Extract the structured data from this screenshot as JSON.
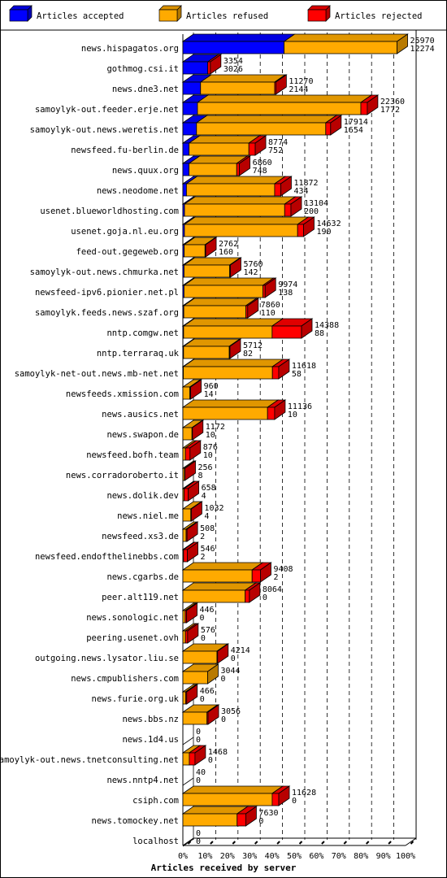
{
  "chart_data": {
    "type": "bar",
    "orientation": "horizontal",
    "stacked": true,
    "title": "Articles received by server",
    "legend_position": "top",
    "grid": true,
    "x_ticks": [
      "0%",
      "10%",
      "20%",
      "30%",
      "40%",
      "50%",
      "60%",
      "70%",
      "80%",
      "90%",
      "100%"
    ],
    "xlim": [
      0,
      27000
    ],
    "series": [
      {
        "name": "Articles accepted",
        "color": "#0000ff"
      },
      {
        "name": "Articles refused",
        "color": "#ffaa00"
      },
      {
        "name": "Articles rejected",
        "color": "#ff0000"
      }
    ],
    "categories": [
      "news.hispagatos.org",
      "gothmog.csi.it",
      "news.dne3.net",
      "samoylyk-out.feeder.erje.net",
      "samoylyk-out.news.weretis.net",
      "newsfeed.fu-berlin.de",
      "news.quux.org",
      "news.neodome.net",
      "usenet.blueworldhosting.com",
      "usenet.goja.nl.eu.org",
      "feed-out.gegeweb.org",
      "samoylyk-out.news.chmurka.net",
      "newsfeed-ipv6.pionier.net.pl",
      "samoylyk.feeds.news.szaf.org",
      "nntp.comgw.net",
      "nntp.terraraq.uk",
      "samoylyk-net-out.news.mb-net.net",
      "newsfeeds.xmission.com",
      "news.ausics.net",
      "news.swapon.de",
      "newsfeed.bofh.team",
      "news.corradoroberto.it",
      "news.dolik.dev",
      "news.niel.me",
      "newsfeed.xs3.de",
      "newsfeed.endofthelinebbs.com",
      "news.cgarbs.de",
      "peer.alt119.net",
      "news.sonologic.net",
      "peering.usenet.ovh",
      "outgoing.news.lysator.liu.se",
      "news.cmpublishers.com",
      "news.furie.org.uk",
      "news.bbs.nz",
      "news.1d4.us",
      "samoylyk-out.news.tnetconsulting.net",
      "news.nntp4.net",
      "csiph.com",
      "news.tomockey.net",
      "localhost"
    ],
    "totals": [
      "25970",
      "3354",
      "11270",
      "22360",
      "17914",
      "8774",
      "6860",
      "11872",
      "13104",
      "14632",
      "2762",
      "5760",
      "9974",
      "7860",
      "14388",
      "5712",
      "11618",
      "960",
      "11136",
      "1172",
      "876",
      "256",
      "658",
      "1032",
      "508",
      "546",
      "9408",
      "8064",
      "446",
      "576",
      "4214",
      "3044",
      "466",
      "3056",
      "0",
      "1468",
      "40",
      "11628",
      "7630",
      "0"
    ],
    "accepted": [
      "12274",
      "3026",
      "2144",
      "1772",
      "1654",
      "752",
      "748",
      "434",
      "200",
      "190",
      "160",
      "142",
      "138",
      "110",
      "88",
      "82",
      "58",
      "14",
      "10",
      "10",
      "10",
      "8",
      "4",
      "4",
      "2",
      "2",
      "2",
      "0",
      "0",
      "0",
      "0",
      "0",
      "0",
      "0",
      "0",
      "0",
      "0",
      "0",
      "0",
      "0"
    ],
    "refused": [
      13696,
      20,
      8984,
      19808,
      15670,
      7252,
      5780,
      10694,
      12144,
      13722,
      2530,
      5536,
      9566,
      7530,
      10736,
      5544,
      10800,
      850,
      10266,
      1106,
      306,
      194,
      150,
      964,
      386,
      84,
      8396,
      7554,
      276,
      308,
      4134,
      3004,
      334,
      2926,
      0,
      778,
      28,
      10830,
      6578,
      0
    ],
    "rejected": [
      0,
      308,
      142,
      780,
      590,
      770,
      332,
      744,
      760,
      720,
      72,
      82,
      270,
      220,
      3564,
      86,
      760,
      96,
      860,
      56,
      560,
      54,
      504,
      64,
      120,
      460,
      1010,
      510,
      170,
      268,
      80,
      40,
      132,
      130,
      0,
      690,
      12,
      798,
      1052,
      0
    ]
  }
}
